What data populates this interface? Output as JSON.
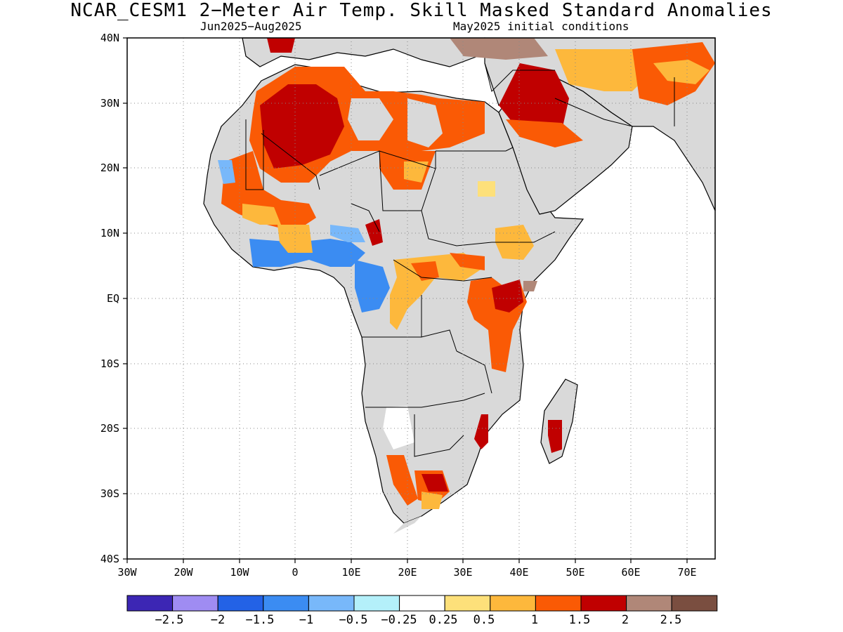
{
  "title": "NCAR_CESM1 2−Meter Air Temp. Skill Masked Standard Anomalies",
  "period": "Jun2025−Aug2025",
  "init": "May2025 initial conditions",
  "lat_labels": [
    "40N",
    "30N",
    "20N",
    "10N",
    "EQ",
    "10S",
    "20S",
    "30S",
    "40S"
  ],
  "lon_labels": [
    "30W",
    "20W",
    "10W",
    "0",
    "10E",
    "20E",
    "30E",
    "40E",
    "50E",
    "60E",
    "70E"
  ],
  "colorbar": {
    "colors": [
      "#3c26b4",
      "#9f8cf2",
      "#2362e6",
      "#3b8cf2",
      "#78b8fa",
      "#b4f0fa",
      "#ffffff",
      "#fde07a",
      "#fdb83c",
      "#fa5a05",
      "#c00000",
      "#b08778",
      "#7a4e40"
    ],
    "labels": [
      "−2.5",
      "−2",
      "−1.5",
      "−1",
      "−0.5",
      "−0.25",
      "0.25",
      "0.5",
      "1",
      "1.5",
      "2",
      "2.5"
    ]
  },
  "legend_meaning": {
    "gray": "skill masked",
    "colors": "standard anomaly"
  }
}
